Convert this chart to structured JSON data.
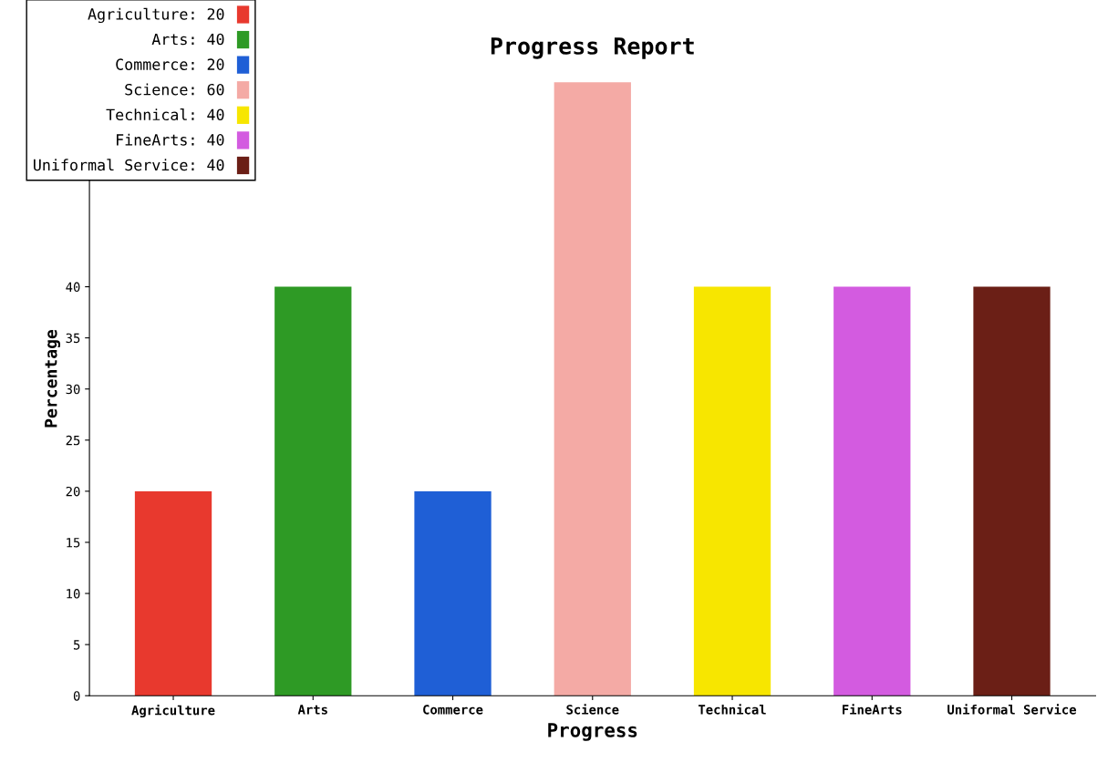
{
  "chart_data": {
    "type": "bar",
    "title": "Progress Report",
    "xlabel": "Progress",
    "ylabel": "Percentage",
    "categories": [
      "Agriculture",
      "Arts",
      "Commerce",
      "Science",
      "Technical",
      "FineArts",
      "Uniformal Service"
    ],
    "series": [
      {
        "name": "Agriculture: 20",
        "color": "#e8392e",
        "values": [
          20,
          null,
          null,
          null,
          null,
          null,
          null
        ]
      },
      {
        "name": "Arts: 40",
        "color": "#2e9a25",
        "values": [
          null,
          40,
          null,
          null,
          null,
          null,
          null
        ]
      },
      {
        "name": "Commerce: 20",
        "color": "#1f5fd6",
        "values": [
          null,
          null,
          20,
          null,
          null,
          null,
          null
        ]
      },
      {
        "name": "Science: 60",
        "color": "#f4aaa5",
        "values": [
          null,
          null,
          null,
          60,
          null,
          null,
          null
        ]
      },
      {
        "name": "Technical: 40",
        "color": "#f7e600",
        "values": [
          null,
          null,
          null,
          null,
          40,
          null,
          null
        ]
      },
      {
        "name": "FineArts: 40",
        "color": "#d35be0",
        "values": [
          null,
          null,
          null,
          null,
          null,
          40,
          null
        ]
      },
      {
        "name": "Uniformal Service: 40",
        "color": "#6b1f16",
        "values": [
          null,
          null,
          null,
          null,
          null,
          null,
          40
        ]
      }
    ],
    "ylim": [
      0,
      62
    ],
    "yticks": [
      0,
      5,
      10,
      15,
      20,
      25,
      30,
      35,
      40
    ],
    "grid": false,
    "legend": "top left"
  }
}
